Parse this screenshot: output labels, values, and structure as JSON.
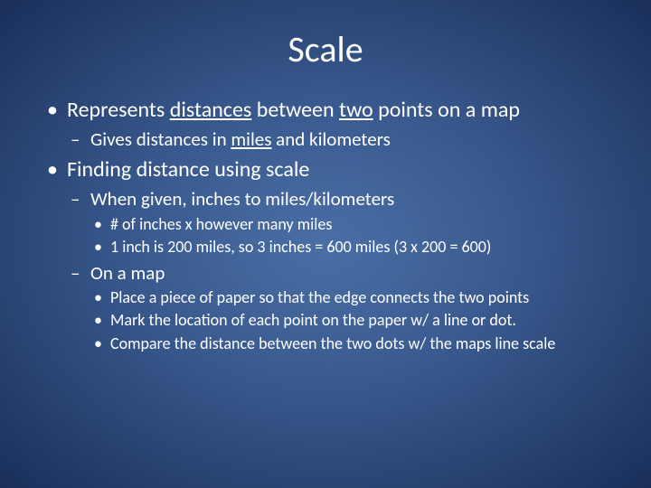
{
  "background": {
    "gradient_center": "#4a6fa5",
    "gradient_mid": "#3a5a8f",
    "gradient_edge": "#1a2f5a"
  },
  "text_color": "#ffffff",
  "title": "Scale",
  "title_fontsize": 40,
  "bullets": {
    "b1_pre": "Represents ",
    "b1_u1": "distances",
    "b1_mid": " between ",
    "b1_u2": "two",
    "b1_post": " points on a map",
    "b1_1_pre": "Gives distances in ",
    "b1_1_u1": "miles",
    "b1_1_post": " and kilometers",
    "b2": "Finding distance using scale",
    "b2_1": "When given, inches to miles/kilometers",
    "b2_1_1": "# of inches x however many miles",
    "b2_1_2": "1 inch is 200 miles, so 3 inches = 600 miles (3 x 200 = 600)",
    "b2_2": "On a map",
    "b2_2_1": "Place a piece of paper so that the edge connects the two points",
    "b2_2_2": "Mark the location of each point on the paper w/ a line or dot.",
    "b2_2_3": "Compare the distance between the two dots w/ the maps line scale"
  },
  "font_sizes": {
    "level1": 24,
    "level2": 21,
    "level3": 18
  }
}
